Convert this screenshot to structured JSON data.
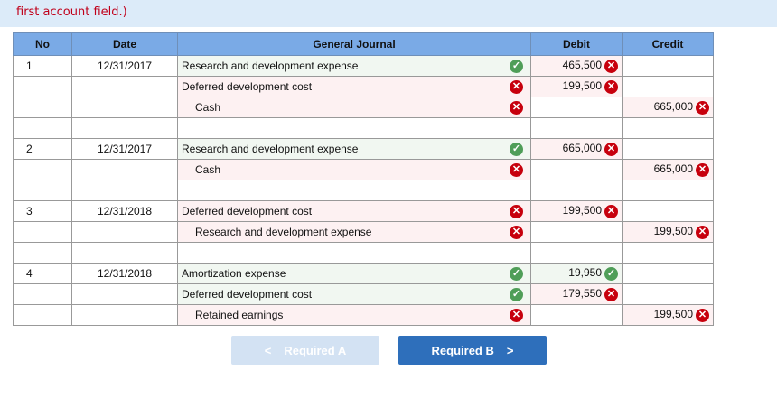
{
  "instruction_text": "first account field.)",
  "table": {
    "headers": {
      "no": "No",
      "date": "Date",
      "journal": "General Journal",
      "debit": "Debit",
      "credit": "Credit"
    },
    "entries": [
      {
        "no": "1",
        "date": "12/31/2017",
        "lines": [
          {
            "account": "Research and development expense",
            "indent": false,
            "account_status": "correct",
            "debit": "465,500",
            "debit_status": "incorrect",
            "credit": "",
            "credit_status": ""
          },
          {
            "account": "Deferred development cost",
            "indent": false,
            "account_status": "incorrect",
            "debit": "199,500",
            "debit_status": "incorrect",
            "credit": "",
            "credit_status": ""
          },
          {
            "account": "Cash",
            "indent": true,
            "account_status": "incorrect",
            "debit": "",
            "debit_status": "",
            "credit": "665,000",
            "credit_status": "incorrect"
          }
        ],
        "blank_after": true
      },
      {
        "no": "2",
        "date": "12/31/2017",
        "lines": [
          {
            "account": "Research and development expense",
            "indent": false,
            "account_status": "correct",
            "debit": "665,000",
            "debit_status": "incorrect",
            "credit": "",
            "credit_status": ""
          },
          {
            "account": "Cash",
            "indent": true,
            "account_status": "incorrect",
            "debit": "",
            "debit_status": "",
            "credit": "665,000",
            "credit_status": "incorrect"
          }
        ],
        "blank_after": true
      },
      {
        "no": "3",
        "date": "12/31/2018",
        "lines": [
          {
            "account": "Deferred development cost",
            "indent": false,
            "account_status": "incorrect",
            "debit": "199,500",
            "debit_status": "incorrect",
            "credit": "",
            "credit_status": ""
          },
          {
            "account": "Research and development expense",
            "indent": true,
            "account_status": "incorrect",
            "debit": "",
            "debit_status": "",
            "credit": "199,500",
            "credit_status": "incorrect"
          }
        ],
        "blank_after": true
      },
      {
        "no": "4",
        "date": "12/31/2018",
        "lines": [
          {
            "account": "Amortization expense",
            "indent": false,
            "account_status": "correct",
            "debit": "19,950",
            "debit_status": "correct",
            "credit": "",
            "credit_status": ""
          },
          {
            "account": "Deferred development cost",
            "indent": false,
            "account_status": "correct",
            "debit": "179,550",
            "debit_status": "incorrect",
            "credit": "",
            "credit_status": ""
          },
          {
            "account": "Retained earnings",
            "indent": true,
            "account_status": "incorrect",
            "debit": "",
            "debit_status": "",
            "credit": "199,500",
            "credit_status": "incorrect"
          }
        ],
        "blank_after": false
      }
    ]
  },
  "icons": {
    "correct": "check-circle-icon",
    "incorrect": "x-circle-icon"
  },
  "colors": {
    "header": "#7aaae6",
    "correct": "#4f9e58",
    "incorrect": "#c7000d",
    "primary_button": "#2e6fbb",
    "disabled_button": "#d3e2f3"
  },
  "nav": {
    "prev_label": "Required A",
    "prev_disabled": true,
    "next_label": "Required B",
    "prev_chevron": "<",
    "next_chevron": ">"
  }
}
